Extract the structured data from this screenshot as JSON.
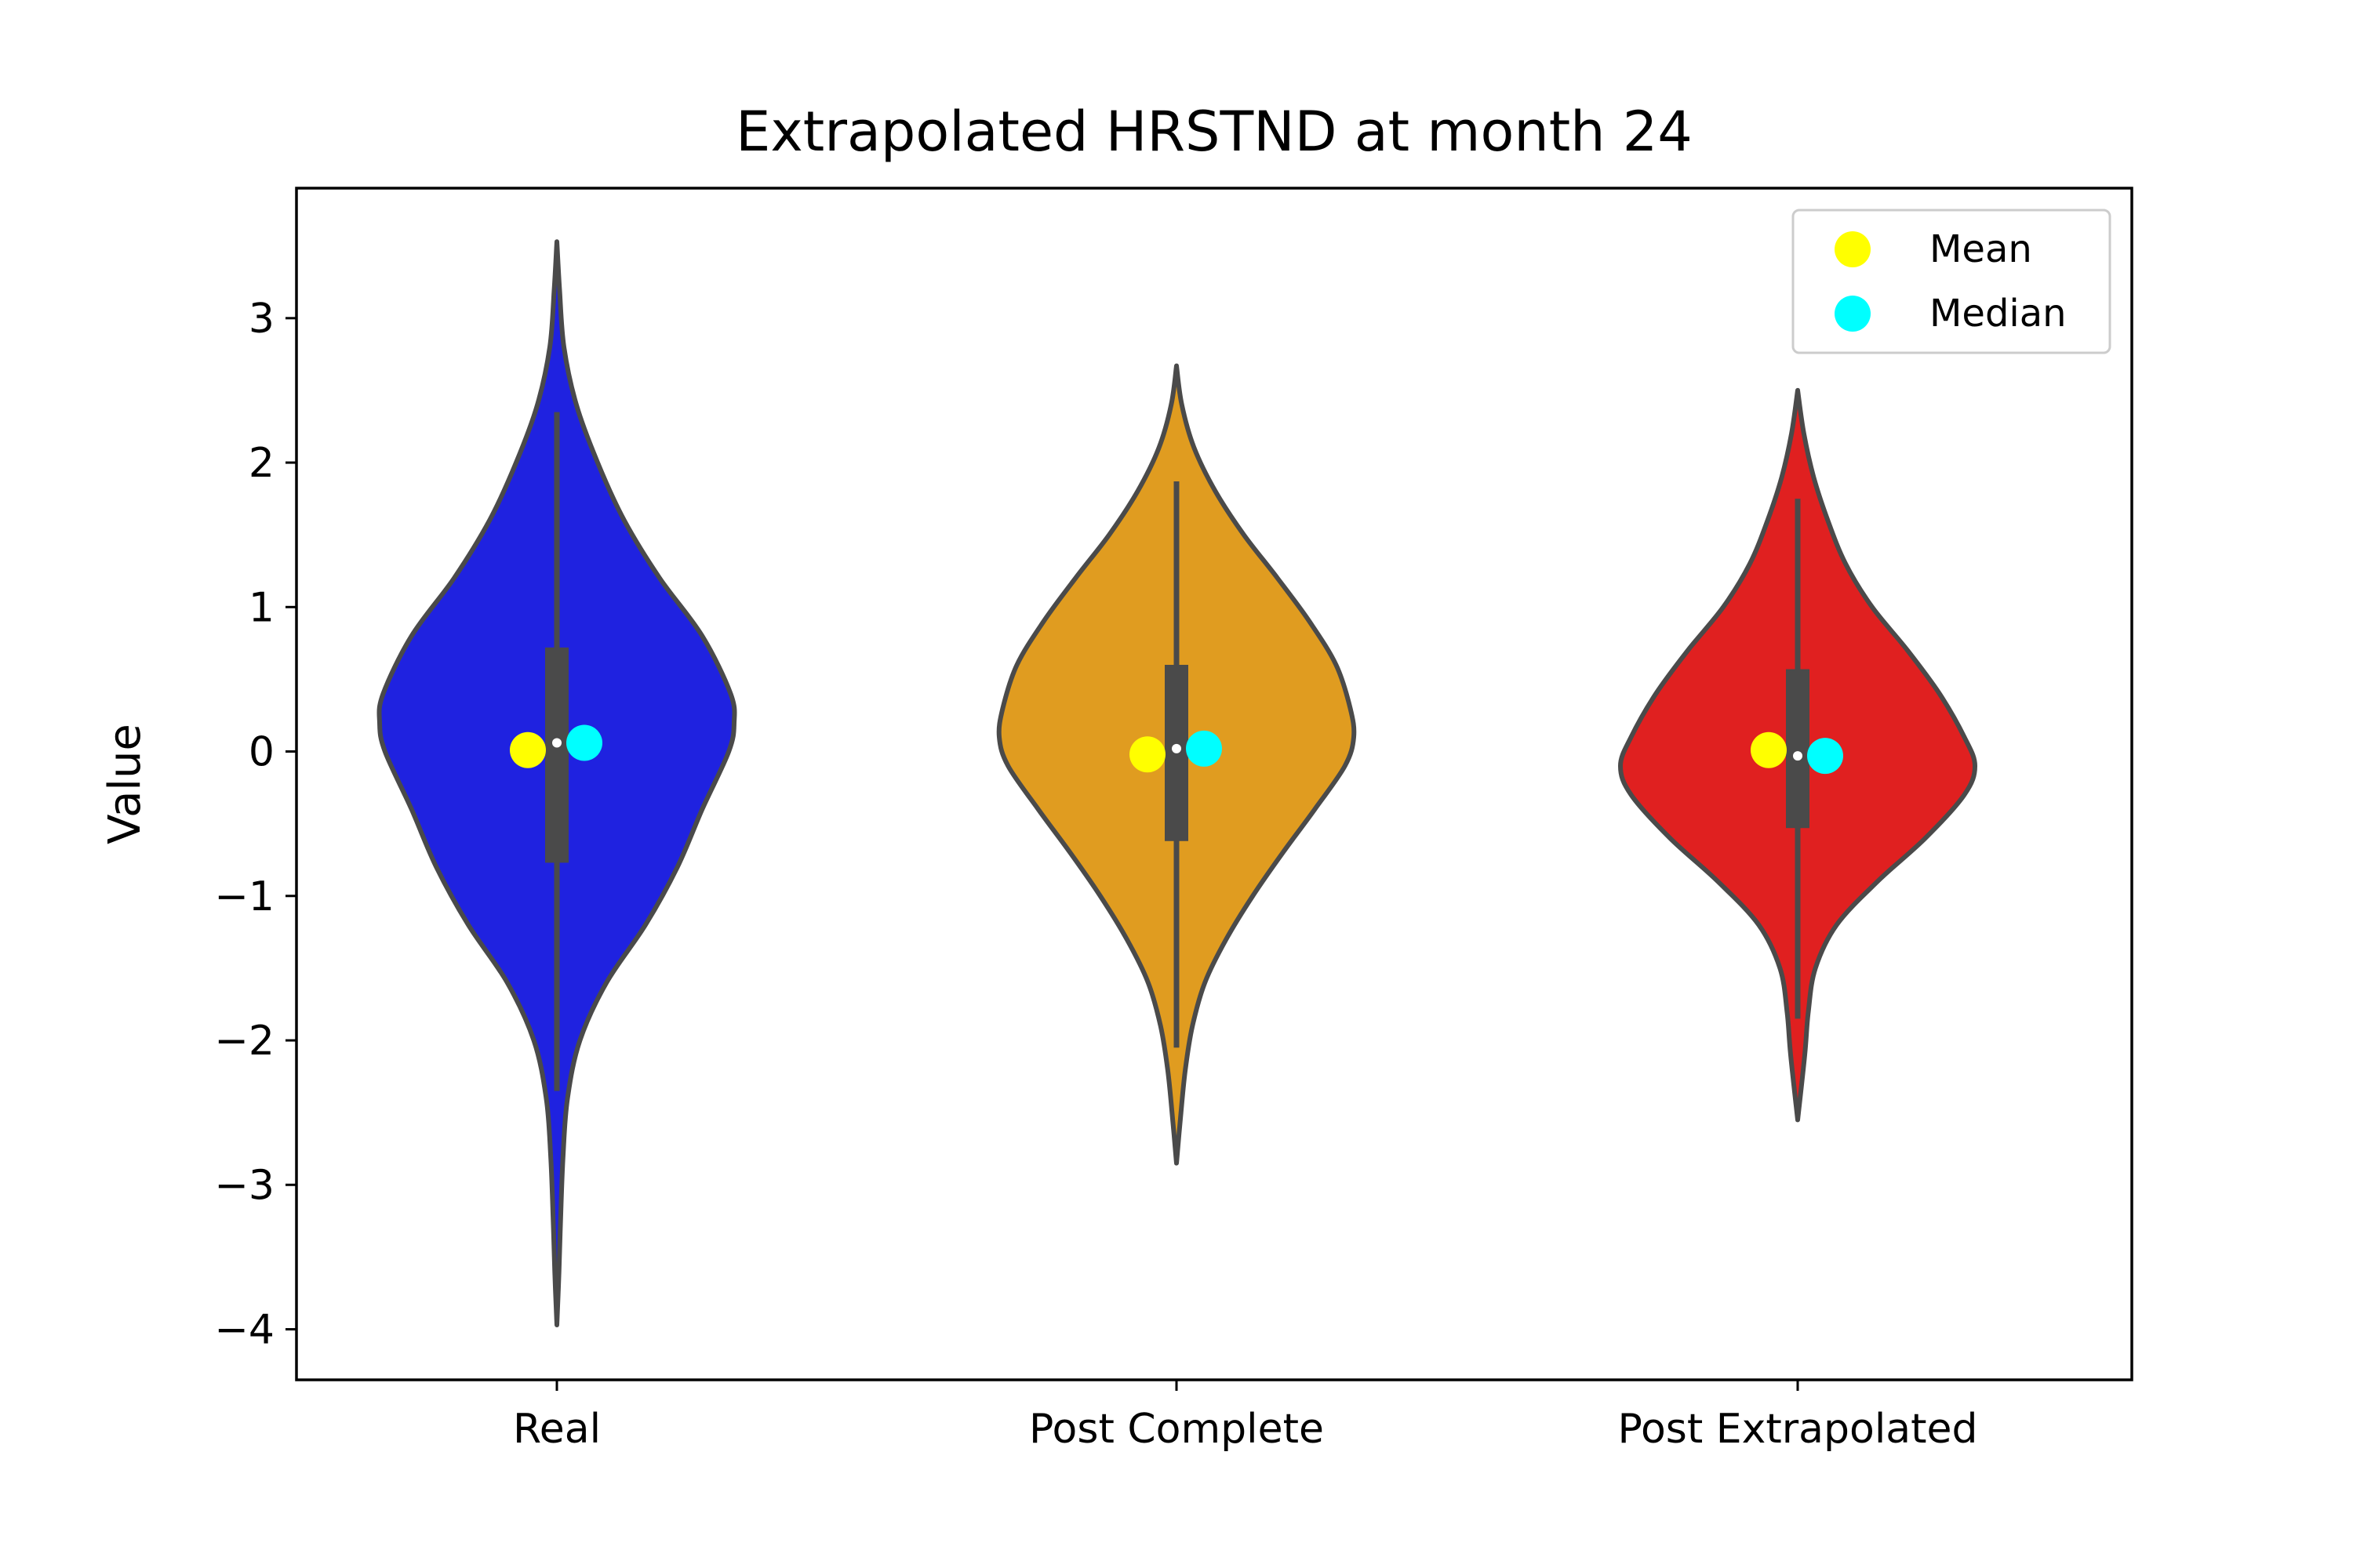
{
  "chart_data": {
    "type": "violin",
    "title": "Extrapolated HRSTND at month 24",
    "xlabel": "",
    "ylabel": "Value",
    "ylim": [
      -4.35,
      3.9
    ],
    "yticks": [
      3,
      2,
      1,
      0,
      -1,
      -2,
      -3,
      -4
    ],
    "ytick_labels": [
      "3",
      "2",
      "1",
      "0",
      "−1",
      "−2",
      "−3",
      "−4"
    ],
    "categories": [
      "Real",
      "Post Complete",
      "Post Extrapolated"
    ],
    "legend": {
      "position": "top-right",
      "entries": [
        {
          "label": "Mean",
          "color": "#ffff00"
        },
        {
          "label": "Median",
          "color": "#00ffff"
        }
      ]
    },
    "grid": false,
    "series": [
      {
        "category": "Real",
        "fill_color": "#1f22e0",
        "edge_color": "#4a4a4a",
        "min": -3.97,
        "max": 3.53,
        "q1": -0.77,
        "q3": 0.72,
        "whisker_low": -2.35,
        "whisker_high": 2.35,
        "median": 0.06,
        "mean": 0.01,
        "density_profile": [
          [
            3.53,
            0.0
          ],
          [
            3.2,
            0.015
          ],
          [
            2.8,
            0.04
          ],
          [
            2.4,
            0.11
          ],
          [
            2.0,
            0.23
          ],
          [
            1.6,
            0.38
          ],
          [
            1.2,
            0.58
          ],
          [
            0.8,
            0.82
          ],
          [
            0.4,
            0.98
          ],
          [
            0.2,
            1.0
          ],
          [
            0.0,
            0.97
          ],
          [
            -0.4,
            0.82
          ],
          [
            -0.8,
            0.68
          ],
          [
            -1.2,
            0.5
          ],
          [
            -1.6,
            0.28
          ],
          [
            -2.0,
            0.13
          ],
          [
            -2.4,
            0.06
          ],
          [
            -2.8,
            0.035
          ],
          [
            -3.2,
            0.022
          ],
          [
            -3.6,
            0.012
          ],
          [
            -3.97,
            0.0
          ]
        ]
      },
      {
        "category": "Post Complete",
        "fill_color": "#e09c20",
        "edge_color": "#4a4a4a",
        "min": -2.85,
        "max": 2.67,
        "q1": -0.62,
        "q3": 0.6,
        "whisker_low": -2.05,
        "whisker_high": 1.87,
        "median": 0.02,
        "mean": -0.02,
        "density_profile": [
          [
            2.67,
            0.0
          ],
          [
            2.4,
            0.03
          ],
          [
            2.1,
            0.1
          ],
          [
            1.8,
            0.22
          ],
          [
            1.5,
            0.38
          ],
          [
            1.2,
            0.57
          ],
          [
            0.9,
            0.75
          ],
          [
            0.6,
            0.9
          ],
          [
            0.3,
            0.98
          ],
          [
            0.1,
            1.0
          ],
          [
            -0.1,
            0.95
          ],
          [
            -0.4,
            0.78
          ],
          [
            -0.7,
            0.6
          ],
          [
            -1.0,
            0.43
          ],
          [
            -1.3,
            0.28
          ],
          [
            -1.6,
            0.16
          ],
          [
            -1.9,
            0.09
          ],
          [
            -2.2,
            0.05
          ],
          [
            -2.5,
            0.025
          ],
          [
            -2.85,
            0.0
          ]
        ]
      },
      {
        "category": "Post Extrapolated",
        "fill_color": "#e02020",
        "edge_color": "#4a4a4a",
        "min": -2.55,
        "max": 2.5,
        "q1": -0.53,
        "q3": 0.57,
        "whisker_low": -1.85,
        "whisker_high": 1.75,
        "median": -0.03,
        "mean": 0.01,
        "density_profile": [
          [
            2.5,
            0.0
          ],
          [
            2.2,
            0.035
          ],
          [
            1.9,
            0.09
          ],
          [
            1.6,
            0.17
          ],
          [
            1.3,
            0.27
          ],
          [
            1.0,
            0.42
          ],
          [
            0.7,
            0.62
          ],
          [
            0.4,
            0.8
          ],
          [
            0.1,
            0.94
          ],
          [
            -0.1,
            1.0
          ],
          [
            -0.3,
            0.94
          ],
          [
            -0.6,
            0.72
          ],
          [
            -0.9,
            0.45
          ],
          [
            -1.2,
            0.22
          ],
          [
            -1.5,
            0.1
          ],
          [
            -1.8,
            0.06
          ],
          [
            -2.1,
            0.04
          ],
          [
            -2.55,
            0.0
          ]
        ]
      }
    ]
  }
}
